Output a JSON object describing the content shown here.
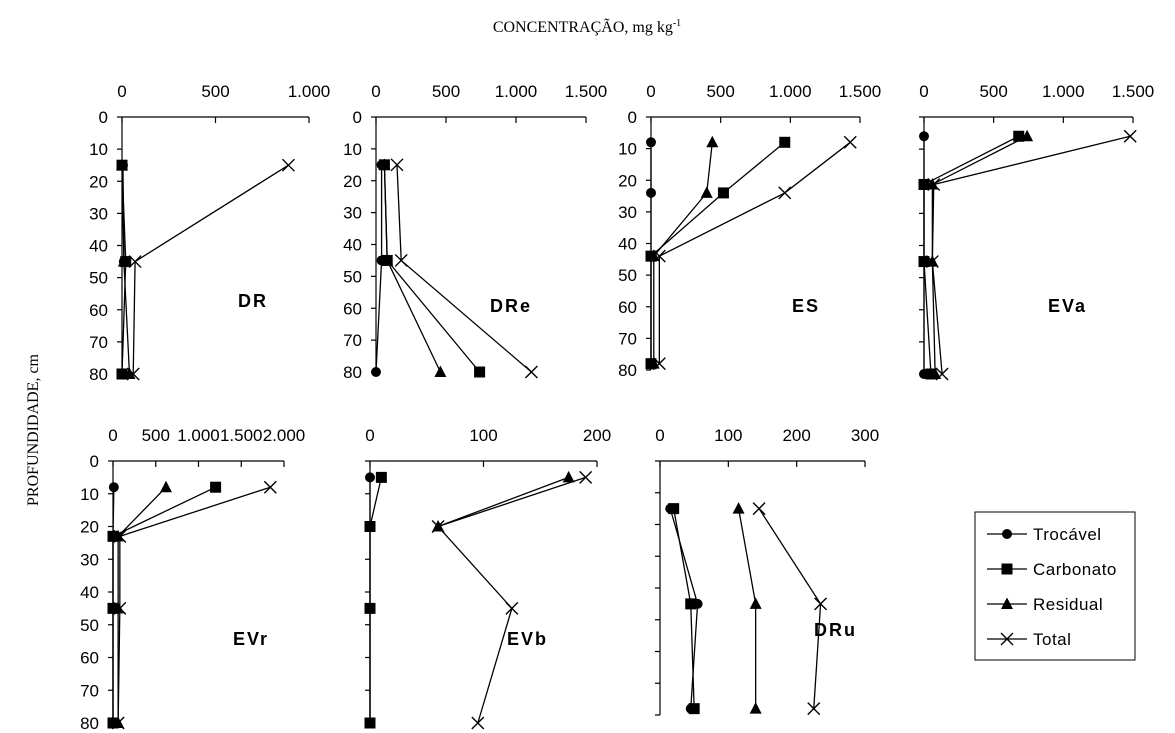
{
  "figure": {
    "title": "CONCENTRAÇÃO, mg kg",
    "title_sup": "-1",
    "ylabel": "PROFUNDIDADE, cm"
  },
  "legend": {
    "items": [
      {
        "label": "Trocável",
        "marker": "circle"
      },
      {
        "label": "Carbonato",
        "marker": "square"
      },
      {
        "label": "Residual",
        "marker": "triangle"
      },
      {
        "label": "Total",
        "marker": "cross"
      }
    ]
  },
  "chart_data": [
    {
      "type": "line",
      "name": "DR",
      "xticks": [
        "0",
        "500",
        "1.000"
      ],
      "xlim": [
        0,
        1000
      ],
      "yticks": [
        "0",
        "10",
        "20",
        "30",
        "40",
        "50",
        "60",
        "70",
        "80"
      ],
      "ylim": [
        0,
        80
      ],
      "series": [
        {
          "name": "Trocável",
          "marker": "circle",
          "points": [
            [
              5,
              15
            ],
            [
              10,
              45
            ]
          ]
        },
        {
          "name": "Carbonato",
          "marker": "square",
          "points": [
            [
              0,
              15
            ],
            [
              20,
              45
            ],
            [
              0,
              80
            ]
          ]
        },
        {
          "name": "Residual",
          "marker": "triangle",
          "points": [
            [
              0,
              15
            ],
            [
              10,
              45
            ],
            [
              40,
              80
            ]
          ]
        },
        {
          "name": "Total",
          "marker": "cross",
          "points": [
            [
              890,
              15
            ],
            [
              70,
              45
            ],
            [
              60,
              80
            ]
          ]
        }
      ]
    },
    {
      "type": "line",
      "name": "DRe",
      "xticks": [
        "0",
        "500",
        "1.000",
        "1.500"
      ],
      "xlim": [
        0,
        1500
      ],
      "yticks": [
        "0",
        "10",
        "20",
        "30",
        "40",
        "50",
        "60",
        "70",
        "80"
      ],
      "ylim": [
        0,
        80
      ],
      "series": [
        {
          "name": "Trocável",
          "marker": "circle",
          "points": [
            [
              40,
              15
            ],
            [
              40,
              45
            ],
            [
              0,
              80
            ]
          ]
        },
        {
          "name": "Carbonato",
          "marker": "square",
          "points": [
            [
              60,
              15
            ],
            [
              80,
              45
            ],
            [
              740,
              80
            ]
          ]
        },
        {
          "name": "Residual",
          "marker": "triangle",
          "points": [
            [
              60,
              15
            ],
            [
              80,
              45
            ],
            [
              460,
              80
            ]
          ]
        },
        {
          "name": "Total",
          "marker": "cross",
          "points": [
            [
              150,
              15
            ],
            [
              180,
              45
            ],
            [
              1110,
              80
            ]
          ]
        }
      ]
    },
    {
      "type": "line",
      "name": "ES",
      "xticks": [
        "0",
        "500",
        "1.000",
        "1.500"
      ],
      "xlim": [
        0,
        1500
      ],
      "yticks": [
        "0",
        "10",
        "20",
        "30",
        "40",
        "50",
        "60",
        "70",
        "80"
      ],
      "ylim": [
        0,
        80
      ],
      "series": [
        {
          "name": "Trocável",
          "marker": "circle",
          "points": [
            [
              0,
              8
            ],
            [
              0,
              24
            ],
            [
              0,
              44
            ],
            [
              0,
              78
            ]
          ]
        },
        {
          "name": "Carbonato",
          "marker": "square",
          "points": [
            [
              960,
              8
            ],
            [
              520,
              24
            ],
            [
              0,
              44
            ],
            [
              0,
              78
            ]
          ]
        },
        {
          "name": "Residual",
          "marker": "triangle",
          "points": [
            [
              440,
              8
            ],
            [
              400,
              24
            ],
            [
              20,
              44
            ],
            [
              20,
              78
            ]
          ]
        },
        {
          "name": "Total",
          "marker": "cross",
          "points": [
            [
              1430,
              8
            ],
            [
              960,
              24
            ],
            [
              60,
              44
            ],
            [
              60,
              78
            ]
          ]
        }
      ]
    },
    {
      "type": "line",
      "name": "EVa",
      "xticks": [
        "0",
        "500",
        "1.000",
        "1.500"
      ],
      "xlim": [
        0,
        1500
      ],
      "yticks": [
        "0",
        "10",
        "20",
        "30",
        "40",
        "50",
        "60",
        "70",
        "80"
      ],
      "ylim": [
        0,
        80
      ],
      "series": [
        {
          "name": "Trocável",
          "marker": "circle",
          "points": [
            [
              0,
              6
            ],
            [
              0,
              21
            ],
            [
              0,
              45
            ],
            [
              0,
              80
            ]
          ]
        },
        {
          "name": "Carbonato",
          "marker": "square",
          "points": [
            [
              680,
              6
            ],
            [
              0,
              21
            ],
            [
              0,
              45
            ],
            [
              50,
              80
            ]
          ]
        },
        {
          "name": "Residual",
          "marker": "triangle",
          "points": [
            [
              740,
              6
            ],
            [
              60,
              21
            ],
            [
              60,
              45
            ],
            [
              80,
              80
            ]
          ]
        },
        {
          "name": "Total",
          "marker": "cross",
          "points": [
            [
              1480,
              6
            ],
            [
              70,
              21
            ],
            [
              60,
              45
            ],
            [
              130,
              80
            ]
          ]
        }
      ]
    },
    {
      "type": "line",
      "name": "EVr",
      "xticks": [
        "0",
        "500",
        "1.000",
        "1.500",
        "2.000"
      ],
      "xlim": [
        0,
        2000
      ],
      "yticks": [
        "0",
        "10",
        "20",
        "30",
        "40",
        "50",
        "60",
        "70",
        "80"
      ],
      "ylim": [
        0,
        80
      ],
      "series": [
        {
          "name": "Trocável",
          "marker": "circle",
          "points": [
            [
              10,
              8
            ],
            [
              0,
              23
            ],
            [
              0,
              45
            ],
            [
              0,
              80
            ]
          ]
        },
        {
          "name": "Carbonato",
          "marker": "square",
          "points": [
            [
              1200,
              8
            ],
            [
              0,
              23
            ],
            [
              0,
              45
            ],
            [
              0,
              80
            ]
          ]
        },
        {
          "name": "Residual",
          "marker": "triangle",
          "points": [
            [
              620,
              8
            ],
            [
              60,
              23
            ],
            [
              60,
              45
            ],
            [
              60,
              80
            ]
          ]
        },
        {
          "name": "Total",
          "marker": "cross",
          "points": [
            [
              1840,
              8
            ],
            [
              80,
              23
            ],
            [
              80,
              45
            ],
            [
              60,
              80
            ]
          ]
        }
      ]
    },
    {
      "type": "line",
      "name": "EVb",
      "xticks": [
        "0",
        "100",
        "200"
      ],
      "xlim": [
        0,
        200
      ],
      "yticks": [
        "0",
        "10",
        "20",
        "30",
        "40",
        "50",
        "60",
        "70",
        "80"
      ],
      "ylim": [
        0,
        80
      ],
      "series": [
        {
          "name": "Trocável",
          "marker": "circle",
          "points": [
            [
              0,
              5
            ],
            [
              0,
              20
            ],
            [
              0,
              45
            ],
            [
              0,
              80
            ]
          ]
        },
        {
          "name": "Carbonato",
          "marker": "square",
          "points": [
            [
              10,
              5
            ],
            [
              0,
              20
            ],
            [
              0,
              45
            ],
            [
              0,
              80
            ]
          ]
        },
        {
          "name": "Residual",
          "marker": "triangle",
          "points": [
            [
              175,
              5
            ],
            [
              60,
              20
            ]
          ]
        },
        {
          "name": "Total",
          "marker": "cross",
          "points": [
            [
              190,
              5
            ],
            [
              60,
              20
            ],
            [
              125,
              45
            ],
            [
              95,
              80
            ]
          ]
        }
      ]
    },
    {
      "type": "line",
      "name": "DRu",
      "xticks": [
        "0",
        "100",
        "200",
        "300"
      ],
      "xlim": [
        0,
        300
      ],
      "yticks": [
        "0",
        "10",
        "20",
        "30",
        "40",
        "50",
        "60",
        "70",
        "80"
      ],
      "ylim": [
        0,
        80
      ],
      "series": [
        {
          "name": "Trocável",
          "marker": "circle",
          "points": [
            [
              15,
              15
            ],
            [
              55,
              45
            ],
            [
              45,
              78
            ]
          ]
        },
        {
          "name": "Carbonato",
          "marker": "square",
          "points": [
            [
              20,
              15
            ],
            [
              45,
              45
            ],
            [
              50,
              78
            ]
          ]
        },
        {
          "name": "Residual",
          "marker": "triangle",
          "points": [
            [
              115,
              15
            ],
            [
              140,
              45
            ],
            [
              140,
              78
            ]
          ]
        },
        {
          "name": "Total",
          "marker": "cross",
          "points": [
            [
              145,
              15
            ],
            [
              235,
              45
            ],
            [
              225,
              78
            ]
          ]
        }
      ]
    }
  ]
}
